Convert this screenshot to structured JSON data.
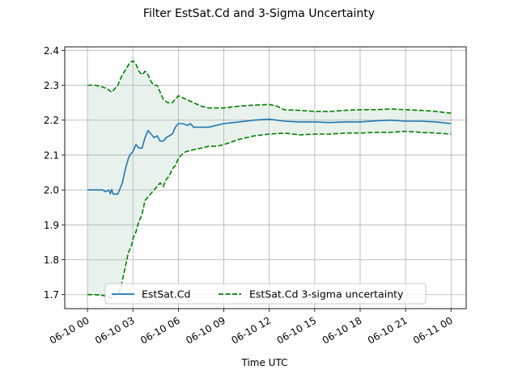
{
  "chart_data": {
    "type": "line",
    "title": "Filter EstSat.Cd and 3-Sigma Uncertainty",
    "xlabel": "Time UTC",
    "ylabel": "",
    "x_ticks": [
      "06-10 00",
      "06-10 03",
      "06-10 06",
      "06-10 09",
      "06-10 12",
      "06-10 15",
      "06-10 18",
      "06-10 21",
      "06-11 00"
    ],
    "x_tick_hours": [
      0,
      3,
      6,
      9,
      12,
      15,
      18,
      21,
      24
    ],
    "y_ticks": [
      "1.7",
      "1.8",
      "1.9",
      "2.0",
      "2.1",
      "2.2",
      "2.3",
      "2.4"
    ],
    "y_tick_values": [
      1.7,
      1.8,
      1.9,
      2.0,
      2.1,
      2.2,
      2.3,
      2.4
    ],
    "xlim_hours": [
      -1.5,
      25
    ],
    "ylim": [
      1.66,
      2.41
    ],
    "grid": true,
    "legend_position": "bottom-center",
    "colors": {
      "estimate": "#1f77b4",
      "sigma": "#008000",
      "fill": "#e8f1ec",
      "grid": "#b0b0b0"
    },
    "series": [
      {
        "name": "EstSat.Cd",
        "style": "solid",
        "x_hours": [
          0,
          0.5,
          1.0,
          1.2,
          1.4,
          1.5,
          1.6,
          1.7,
          1.8,
          2.0,
          2.3,
          2.5,
          2.7,
          2.8,
          3.0,
          3.2,
          3.4,
          3.6,
          3.8,
          4.0,
          4.2,
          4.4,
          4.6,
          4.8,
          5.0,
          5.2,
          5.4,
          5.6,
          5.8,
          6.0,
          6.3,
          6.6,
          6.8,
          7.0,
          7.5,
          8.0,
          8.5,
          9.0,
          10.0,
          11.0,
          12.0,
          13.0,
          14.0,
          15.0,
          16.0,
          17.0,
          18.0,
          19.0,
          20.0,
          21.0,
          22.0,
          23.0,
          24.0
        ],
        "values": [
          2.0,
          2.0,
          2.0,
          1.995,
          2.0,
          1.99,
          2.0,
          1.988,
          1.988,
          1.988,
          2.02,
          2.06,
          2.09,
          2.1,
          2.11,
          2.13,
          2.12,
          2.12,
          2.15,
          2.17,
          2.16,
          2.15,
          2.155,
          2.14,
          2.14,
          2.15,
          2.155,
          2.16,
          2.18,
          2.19,
          2.19,
          2.185,
          2.19,
          2.18,
          2.18,
          2.18,
          2.185,
          2.19,
          2.195,
          2.2,
          2.203,
          2.197,
          2.195,
          2.195,
          2.193,
          2.195,
          2.195,
          2.198,
          2.2,
          2.197,
          2.197,
          2.195,
          2.19
        ]
      },
      {
        "name": "EstSat.Cd 3-sigma uncertainty",
        "style": "dashed",
        "x_hours": [
          0,
          0.5,
          1.0,
          1.3,
          1.6,
          2.0,
          2.3,
          2.6,
          2.8,
          3.0,
          3.2,
          3.4,
          3.6,
          3.8,
          4.0,
          4.2,
          4.4,
          4.6,
          4.8,
          5.0,
          5.3,
          5.6,
          6.0,
          6.5,
          7.0,
          7.5,
          8.0,
          8.5,
          9.0,
          10.0,
          11.0,
          12.0,
          12.5,
          13.0,
          14.0,
          15.0,
          16.0,
          17.0,
          18.0,
          19.0,
          20.0,
          21.0,
          22.0,
          23.0,
          24.0
        ],
        "values": [
          2.3,
          2.3,
          2.295,
          2.29,
          2.28,
          2.3,
          2.33,
          2.35,
          2.365,
          2.37,
          2.36,
          2.34,
          2.33,
          2.34,
          2.33,
          2.31,
          2.3,
          2.3,
          2.28,
          2.26,
          2.25,
          2.25,
          2.27,
          2.26,
          2.25,
          2.24,
          2.235,
          2.235,
          2.235,
          2.24,
          2.243,
          2.245,
          2.24,
          2.23,
          2.228,
          2.225,
          2.225,
          2.228,
          2.23,
          2.23,
          2.232,
          2.23,
          2.228,
          2.225,
          2.22
        ]
      },
      {
        "name": "",
        "style": "dashed",
        "x_hours": [
          0,
          0.5,
          1.0,
          1.3,
          1.6,
          1.8,
          2.0,
          2.2,
          2.5,
          2.7,
          2.9,
          3.0,
          3.2,
          3.4,
          3.6,
          3.8,
          4.0,
          4.2,
          4.4,
          4.6,
          4.8,
          5.0,
          5.2,
          5.4,
          5.6,
          5.8,
          6.0,
          6.2,
          6.5,
          7.0,
          7.5,
          8.0,
          8.5,
          9.0,
          10.0,
          11.0,
          12.0,
          13.0,
          14.0,
          15.0,
          16.0,
          17.0,
          18.0,
          19.0,
          20.0,
          21.0,
          22.0,
          23.0,
          24.0
        ],
        "values": [
          1.7,
          1.7,
          1.698,
          1.695,
          1.69,
          1.7,
          1.7,
          1.72,
          1.78,
          1.82,
          1.84,
          1.86,
          1.88,
          1.91,
          1.93,
          1.97,
          1.98,
          1.99,
          2.0,
          2.01,
          2.02,
          2.01,
          2.03,
          2.04,
          2.06,
          2.07,
          2.09,
          2.1,
          2.11,
          2.115,
          2.12,
          2.125,
          2.125,
          2.13,
          2.145,
          2.155,
          2.16,
          2.163,
          2.158,
          2.16,
          2.16,
          2.163,
          2.163,
          2.165,
          2.165,
          2.168,
          2.165,
          2.163,
          2.16
        ]
      }
    ],
    "legend": [
      {
        "label": "EstSat.Cd",
        "style": "solid"
      },
      {
        "label": "EstSat.Cd 3-sigma uncertainty",
        "style": "dashed"
      }
    ]
  }
}
